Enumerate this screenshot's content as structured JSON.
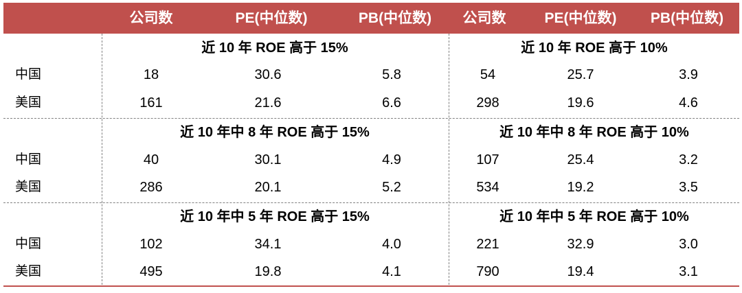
{
  "header": {
    "cols": [
      "公司数",
      "PE(中位数)",
      "PB(中位数)",
      "公司数",
      "PE(中位数)",
      "PB(中位数)"
    ]
  },
  "sections": [
    {
      "left_title": "近 10 年 ROE 高于 15%",
      "right_title": "近 10 年 ROE 高于 10%",
      "rows": [
        {
          "label": "中国",
          "values": [
            "18",
            "30.6",
            "5.8",
            "54",
            "25.7",
            "3.9"
          ]
        },
        {
          "label": "美国",
          "values": [
            "161",
            "21.6",
            "6.6",
            "298",
            "19.6",
            "4.6"
          ]
        }
      ]
    },
    {
      "left_title": "近 10 年中 8 年 ROE 高于 15%",
      "right_title": "近 10 年中 8 年 ROE 高于 10%",
      "rows": [
        {
          "label": "中国",
          "values": [
            "40",
            "30.1",
            "4.9",
            "107",
            "25.4",
            "3.2"
          ]
        },
        {
          "label": "美国",
          "values": [
            "286",
            "20.1",
            "5.2",
            "534",
            "19.2",
            "3.5"
          ]
        }
      ]
    },
    {
      "left_title": "近 10 年中 5 年 ROE 高于 15%",
      "right_title": "近 10 年中 5 年 ROE 高于 10%",
      "rows": [
        {
          "label": "中国",
          "values": [
            "102",
            "34.1",
            "4.0",
            "221",
            "32.9",
            "3.0"
          ]
        },
        {
          "label": "美国",
          "values": [
            "495",
            "19.8",
            "4.1",
            "790",
            "19.4",
            "3.1"
          ]
        }
      ]
    }
  ],
  "colors": {
    "header_bg": "#c0504d",
    "header_text": "#ffffff",
    "divider": "#808080"
  }
}
